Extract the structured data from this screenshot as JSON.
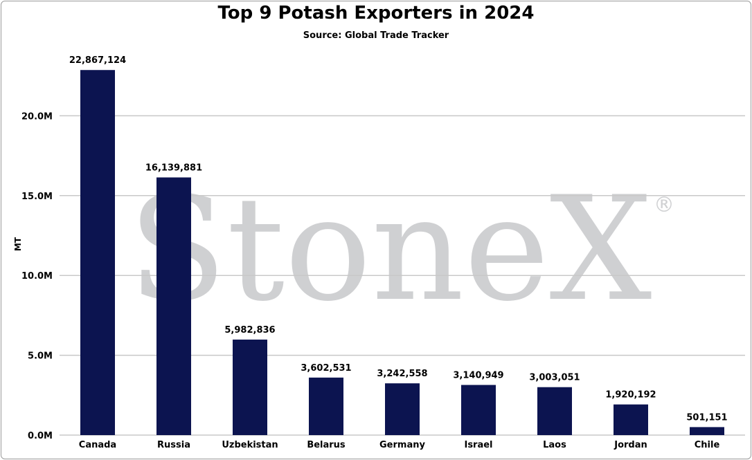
{
  "colors": {
    "bar": "#0c1450",
    "grid": "#c8c8c8",
    "watermark": "#cfd0d2"
  },
  "watermark": {
    "brand": "StoneX",
    "registered": "®"
  },
  "chart_data": {
    "type": "bar",
    "title": "Top 9 Potash Exporters in 2024",
    "subtitle": "Source: Global Trade Tracker",
    "xlabel": "",
    "ylabel": "MT",
    "categories": [
      "Canada",
      "Russia",
      "Uzbekistan",
      "Belarus",
      "Germany",
      "Israel",
      "Laos",
      "Jordan",
      "Chile"
    ],
    "values": [
      22867124,
      16139881,
      5982836,
      3602531,
      3242558,
      3140949,
      3003051,
      1920192,
      501151
    ],
    "data_labels": [
      "22,867,124",
      "16,139,881",
      "5,982,836",
      "3,602,531",
      "3,242,558",
      "3,140,949",
      "3,003,051",
      "1,920,192",
      "501,151"
    ],
    "ylim": [
      0,
      25000000
    ],
    "yticks": [
      0,
      5000000,
      10000000,
      15000000,
      20000000
    ],
    "ytick_labels": [
      "0.0M",
      "5.0M",
      "10.0M",
      "15.0M",
      "20.0M"
    ],
    "grid": true,
    "legend": "none"
  }
}
